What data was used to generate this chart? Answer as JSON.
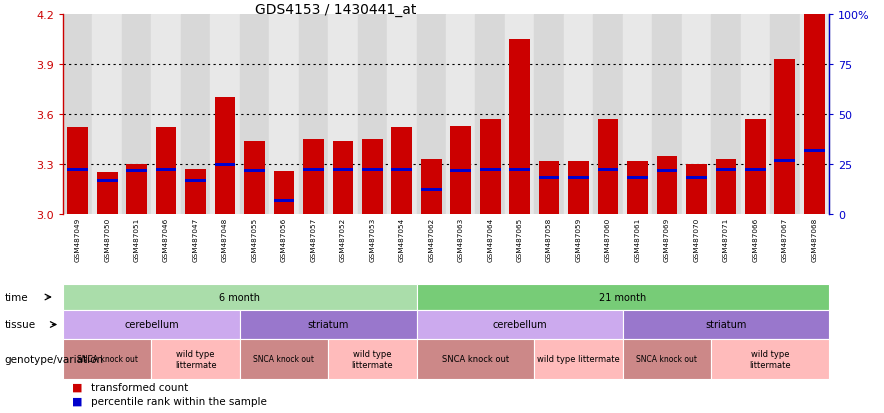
{
  "title": "GDS4153 / 1430441_at",
  "samples": [
    "GSM487049",
    "GSM487050",
    "GSM487051",
    "GSM487046",
    "GSM487047",
    "GSM487048",
    "GSM487055",
    "GSM487056",
    "GSM487057",
    "GSM487052",
    "GSM487053",
    "GSM487054",
    "GSM487062",
    "GSM487063",
    "GSM487064",
    "GSM487065",
    "GSM487058",
    "GSM487059",
    "GSM487060",
    "GSM487061",
    "GSM487069",
    "GSM487070",
    "GSM487071",
    "GSM487066",
    "GSM487067",
    "GSM487068"
  ],
  "red_values": [
    3.52,
    3.25,
    3.3,
    3.52,
    3.27,
    3.7,
    3.44,
    3.26,
    3.45,
    3.44,
    3.45,
    3.52,
    3.33,
    3.53,
    3.57,
    4.05,
    3.32,
    3.32,
    3.57,
    3.32,
    3.35,
    3.3,
    3.33,
    3.57,
    3.93,
    4.2
  ],
  "blue_values": [
    3.27,
    3.2,
    3.26,
    3.27,
    3.2,
    3.3,
    3.26,
    3.08,
    3.27,
    3.27,
    3.27,
    3.27,
    3.15,
    3.26,
    3.27,
    3.27,
    3.22,
    3.22,
    3.27,
    3.22,
    3.26,
    3.22,
    3.27,
    3.27,
    3.32,
    3.38
  ],
  "ymin": 3.0,
  "ymax": 4.2,
  "yticks_left": [
    3.0,
    3.3,
    3.6,
    3.9,
    4.2
  ],
  "yticks_right": [
    0,
    25,
    50,
    75,
    100
  ],
  "bar_color": "#cc0000",
  "blue_color": "#0000cc",
  "time_row": [
    {
      "label": "6 month",
      "start": 0,
      "end": 12,
      "color": "#aaddaa"
    },
    {
      "label": "21 month",
      "start": 12,
      "end": 26,
      "color": "#77cc77"
    }
  ],
  "tissue_row": [
    {
      "label": "cerebellum",
      "start": 0,
      "end": 6,
      "color": "#ccaaee"
    },
    {
      "label": "striatum",
      "start": 6,
      "end": 12,
      "color": "#9977cc"
    },
    {
      "label": "cerebellum",
      "start": 12,
      "end": 19,
      "color": "#ccaaee"
    },
    {
      "label": "striatum",
      "start": 19,
      "end": 26,
      "color": "#9977cc"
    }
  ],
  "genotype_row": [
    {
      "label": "SNCA knock out",
      "start": 0,
      "end": 3,
      "color": "#cc8888",
      "fontsize": 5.5
    },
    {
      "label": "wild type\nlittermate",
      "start": 3,
      "end": 6,
      "color": "#ffbbbb",
      "fontsize": 6
    },
    {
      "label": "SNCA knock out",
      "start": 6,
      "end": 9,
      "color": "#cc8888",
      "fontsize": 5.5
    },
    {
      "label": "wild type\nlittermate",
      "start": 9,
      "end": 12,
      "color": "#ffbbbb",
      "fontsize": 6
    },
    {
      "label": "SNCA knock out",
      "start": 12,
      "end": 16,
      "color": "#cc8888",
      "fontsize": 6
    },
    {
      "label": "wild type littermate",
      "start": 16,
      "end": 19,
      "color": "#ffbbbb",
      "fontsize": 6
    },
    {
      "label": "SNCA knock out",
      "start": 19,
      "end": 22,
      "color": "#cc8888",
      "fontsize": 5.5
    },
    {
      "label": "wild type\nlittermate",
      "start": 22,
      "end": 26,
      "color": "#ffbbbb",
      "fontsize": 6
    }
  ],
  "col_bg_even": "#d8d8d8",
  "col_bg_odd": "#e8e8e8"
}
